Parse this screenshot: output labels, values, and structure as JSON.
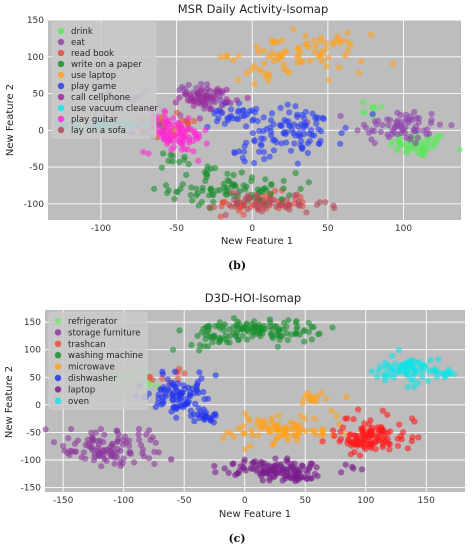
{
  "figure": {
    "panels": [
      {
        "caption": "(b)"
      },
      {
        "caption": "(c)"
      }
    ]
  },
  "chart_data": [
    {
      "type": "scatter",
      "title": "MSR Daily Activity-Isomap",
      "xlabel": "New Feature 1",
      "ylabel": "New Feature 2",
      "xlim": [
        -135,
        138
      ],
      "ylim": [
        -122,
        150
      ],
      "xticks": [
        -100,
        -50,
        0,
        50,
        100
      ],
      "yticks": [
        -100,
        -50,
        0,
        50,
        100,
        150
      ],
      "grid": true,
      "legend_position": "top-left",
      "background": "#bdbdbd",
      "series": [
        {
          "name": "drink",
          "color": "#5ee85e",
          "clusters": [
            [
              110,
              -20,
              13,
              11,
              60
            ],
            [
              78,
              30,
              8,
              8,
              8
            ]
          ]
        },
        {
          "name": "eat",
          "color": "#8e44ad",
          "clusters": [
            [
              97,
              5,
              20,
              17,
              70
            ],
            [
              -25,
              40,
              8,
              12,
              25
            ],
            [
              -37,
              52,
              9,
              10,
              20
            ],
            [
              -80,
              45,
              8,
              8,
              10
            ]
          ]
        },
        {
          "name": "read book",
          "color": "#e74c3c",
          "clusters": [
            [
              5,
              -100,
              22,
              10,
              45
            ],
            [
              -60,
              3,
              10,
              12,
              25
            ],
            [
              -42,
              10,
              7,
              7,
              6
            ]
          ]
        },
        {
          "name": "write on a paper",
          "color": "#1b8f2f",
          "clusters": [
            [
              -12,
              -80,
              28,
              15,
              85
            ],
            [
              -50,
              -40,
              8,
              8,
              10
            ],
            [
              -30,
              -55,
              6,
              6,
              6
            ]
          ]
        },
        {
          "name": "use laptop",
          "color": "#ffa21a",
          "clusters": [
            [
              30,
              105,
              30,
              17,
              75
            ],
            [
              10,
              73,
              11,
              8,
              10
            ]
          ]
        },
        {
          "name": "play game",
          "color": "#2a3ff0",
          "clusters": [
            [
              30,
              0,
              22,
              22,
              90
            ],
            [
              -14,
              20,
              10,
              11,
              30
            ],
            [
              0,
              -30,
              10,
              10,
              15
            ]
          ]
        },
        {
          "name": "call cellphone",
          "color": "#9b2c9b",
          "clusters": [
            [
              -30,
              45,
              12,
              10,
              40
            ],
            [
              -65,
              2,
              8,
              8,
              8
            ]
          ]
        },
        {
          "name": "use vacuum cleaner",
          "color": "#12e8ea",
          "clusters": [
            [
              -102,
              6,
              15,
              4,
              35
            ],
            [
              -82,
              6,
              8,
              5,
              10
            ]
          ]
        },
        {
          "name": "play guitar",
          "color": "#ff2ad7",
          "clusters": [
            [
              -50,
              -8,
              14,
              15,
              75
            ],
            [
              -60,
              18,
              7,
              7,
              15
            ]
          ]
        },
        {
          "name": "lay on a sofa",
          "color": "#b84a5a",
          "clusters": [
            [
              12,
              -102,
              25,
              8,
              45
            ],
            [
              -5,
              -95,
              10,
              8,
              10
            ]
          ]
        }
      ]
    },
    {
      "type": "scatter",
      "title": "D3D-HOI-Isomap",
      "xlabel": "New Feature 1",
      "ylabel": "New Feature 2",
      "xlim": [
        -165,
        182
      ],
      "ylim": [
        -158,
        172
      ],
      "xticks": [
        -150,
        -100,
        -50,
        0,
        50,
        100,
        150
      ],
      "yticks": [
        -150,
        -100,
        -50,
        0,
        50,
        100,
        150
      ],
      "grid": true,
      "legend_position": "top-left",
      "background": "#bdbdbd",
      "series": [
        {
          "name": "refrigerator",
          "color": "#7ee37e",
          "clusters": [
            [
              -97,
              50,
              12,
              10,
              30
            ],
            [
              -80,
              40,
              7,
              7,
              8
            ]
          ]
        },
        {
          "name": "storage furniture",
          "color": "#8e3a9e",
          "clusters": [
            [
              -115,
              -80,
              25,
              20,
              110
            ]
          ]
        },
        {
          "name": "trashcan",
          "color": "#e74c3c",
          "clusters": [
            [
              -70,
              47,
              7,
              7,
              6
            ],
            [
              -52,
              60,
              5,
              5,
              4
            ]
          ]
        },
        {
          "name": "washing machine",
          "color": "#1b8f2f",
          "clusters": [
            [
              12,
              135,
              35,
              14,
              120
            ],
            [
              -30,
              115,
              15,
              12,
              20
            ]
          ]
        },
        {
          "name": "microwave",
          "color": "#ffa21a",
          "clusters": [
            [
              25,
              -45,
              30,
              18,
              90
            ],
            [
              60,
              15,
              12,
              10,
              15
            ]
          ]
        },
        {
          "name": "dishwasher",
          "color": "#2233ee",
          "clusters": [
            [
              -55,
              15,
              18,
              27,
              90
            ],
            [
              -30,
              -25,
              8,
              10,
              20
            ]
          ]
        },
        {
          "name": "laptop",
          "color": "#7a1d8e",
          "clusters": [
            [
              25,
              -115,
              30,
              12,
              110
            ],
            [
              45,
              -130,
              10,
              6,
              20
            ]
          ]
        },
        {
          "name": "oven",
          "color": "#10e3e8",
          "clusters": [
            [
              137,
              65,
              18,
              16,
              80
            ],
            [
              165,
              55,
              6,
              8,
              10
            ]
          ]
        }
      ],
      "extra_red_clusters": [
        [
          108,
          -55,
          18,
          18,
          100
        ],
        [
          90,
          -70,
          12,
          12,
          20
        ]
      ]
    }
  ]
}
